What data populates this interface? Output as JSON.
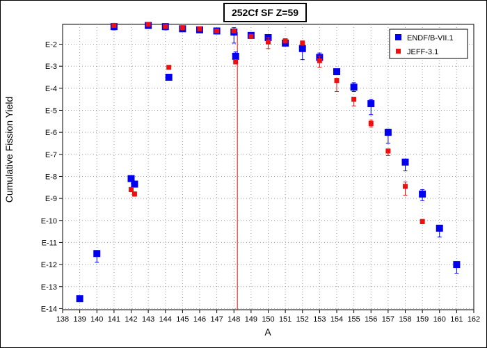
{
  "chart_data": {
    "type": "scatter",
    "title": "252Cf SF Z=59",
    "xlabel": "A",
    "ylabel": "Cumulative Fission Yield",
    "xlim": [
      138,
      162
    ],
    "x_ticks": [
      138,
      139,
      140,
      141,
      142,
      143,
      144,
      145,
      146,
      147,
      148,
      149,
      150,
      151,
      152,
      153,
      154,
      155,
      156,
      157,
      158,
      159,
      160,
      161,
      162
    ],
    "y_scale": "log",
    "ylim_exp": [
      -14.05,
      -1.1
    ],
    "y_ticks": [
      {
        "exp": -2,
        "label": "E-2"
      },
      {
        "exp": -3,
        "label": "E-3"
      },
      {
        "exp": -4,
        "label": "E-4"
      },
      {
        "exp": -5,
        "label": "E-5"
      },
      {
        "exp": -6,
        "label": "E-6"
      },
      {
        "exp": -7,
        "label": "E-7"
      },
      {
        "exp": -8,
        "label": "E-8"
      },
      {
        "exp": -9,
        "label": "E-9"
      },
      {
        "exp": -10,
        "label": "E-10"
      },
      {
        "exp": -11,
        "label": "E-11"
      },
      {
        "exp": -12,
        "label": "E-12"
      },
      {
        "exp": -13,
        "label": "E-13"
      },
      {
        "exp": -14,
        "label": "E-14"
      }
    ],
    "grid": true,
    "legend_position": "top-right",
    "vertical_line": {
      "x": 148.2,
      "color": "#e01010"
    },
    "series": [
      {
        "name": "ENDF/B-VII.1",
        "color": "#0000ee",
        "marker": "square-large",
        "points": [
          {
            "x": 139,
            "y_exp": -13.55,
            "err": [
              0.1,
              0.1
            ]
          },
          {
            "x": 140,
            "y_exp": -11.5,
            "err": [
              0.1,
              0.4
            ]
          },
          {
            "x": 141,
            "y_exp": -1.2,
            "err": [
              0.15,
              0.15
            ]
          },
          {
            "x": 142,
            "y_exp": -8.1,
            "err": [
              0.1,
              0.1
            ]
          },
          {
            "x": 142.2,
            "y_exp": -8.35,
            "err": [
              0.1,
              0.1
            ]
          },
          {
            "x": 143,
            "y_exp": -1.15,
            "err": [
              0.1,
              0.1
            ]
          },
          {
            "x": 144,
            "y_exp": -1.2,
            "err": [
              0.1,
              0.15
            ]
          },
          {
            "x": 144.2,
            "y_exp": -3.5,
            "err": [
              0.05,
              0.05
            ]
          },
          {
            "x": 145,
            "y_exp": -1.3,
            "err": [
              0.1,
              0.1
            ]
          },
          {
            "x": 146,
            "y_exp": -1.35,
            "err": [
              0.1,
              0.1
            ]
          },
          {
            "x": 147,
            "y_exp": -1.4,
            "err": [
              0.1,
              0.1
            ]
          },
          {
            "x": 148,
            "y_exp": -1.45,
            "err": [
              0.2,
              0.5
            ]
          },
          {
            "x": 148.1,
            "y_exp": -2.55,
            "err": [
              0.2,
              0.3
            ]
          },
          {
            "x": 149,
            "y_exp": -1.6,
            "err": [
              0.1,
              0.1
            ]
          },
          {
            "x": 150,
            "y_exp": -1.7,
            "err": [
              0.1,
              0.1
            ]
          },
          {
            "x": 151,
            "y_exp": -1.95,
            "err": [
              0.1,
              0.1
            ]
          },
          {
            "x": 152,
            "y_exp": -2.2,
            "err": [
              0.2,
              0.5
            ]
          },
          {
            "x": 153,
            "y_exp": -2.6,
            "err": [
              0.2,
              0.2
            ]
          },
          {
            "x": 154,
            "y_exp": -3.25,
            "err": [
              0.1,
              0.1
            ]
          },
          {
            "x": 155,
            "y_exp": -3.95,
            "err": [
              0.2,
              0.2
            ]
          },
          {
            "x": 156,
            "y_exp": -4.7,
            "err": [
              0.2,
              0.5
            ]
          },
          {
            "x": 157,
            "y_exp": -6.0,
            "err": [
              0.15,
              0.5
            ]
          },
          {
            "x": 158,
            "y_exp": -7.35,
            "err": [
              0.1,
              0.4
            ]
          },
          {
            "x": 159,
            "y_exp": -8.8,
            "err": [
              0.2,
              0.3
            ]
          },
          {
            "x": 160,
            "y_exp": -10.35,
            "err": [
              0.1,
              0.4
            ]
          },
          {
            "x": 161,
            "y_exp": -12.0,
            "err": [
              0.1,
              0.4
            ]
          }
        ]
      },
      {
        "name": "JEFF-3.1",
        "color": "#ee1010",
        "marker": "square-small",
        "points": [
          {
            "x": 141,
            "y_exp": -1.15,
            "err": [
              0.05,
              0.05
            ]
          },
          {
            "x": 142,
            "y_exp": -8.6,
            "err": [
              0.1,
              0.1
            ]
          },
          {
            "x": 142.2,
            "y_exp": -8.8,
            "err": [
              0.1,
              0.1
            ]
          },
          {
            "x": 143,
            "y_exp": -1.1,
            "err": [
              0.05,
              0.05
            ]
          },
          {
            "x": 144,
            "y_exp": -1.2,
            "err": [
              0.05,
              0.05
            ]
          },
          {
            "x": 144.2,
            "y_exp": -3.05,
            "err": [
              0.05,
              0.05
            ]
          },
          {
            "x": 145,
            "y_exp": -1.25,
            "err": [
              0.05,
              0.05
            ]
          },
          {
            "x": 146,
            "y_exp": -1.3,
            "err": [
              0.05,
              0.05
            ]
          },
          {
            "x": 147,
            "y_exp": -1.4,
            "err": [
              0.05,
              0.05
            ]
          },
          {
            "x": 148,
            "y_exp": -1.4,
            "err": [
              0.05,
              0.05
            ]
          },
          {
            "x": 148.1,
            "y_exp": -2.8,
            "err": [
              0.1,
              0.1
            ]
          },
          {
            "x": 149,
            "y_exp": -1.65,
            "err": [
              0.1,
              0.1
            ]
          },
          {
            "x": 150,
            "y_exp": -1.9,
            "err": [
              0.2,
              0.3
            ]
          },
          {
            "x": 151,
            "y_exp": -1.85,
            "err": [
              0.1,
              0.1
            ]
          },
          {
            "x": 152,
            "y_exp": -1.95,
            "err": [
              0.1,
              0.1
            ]
          },
          {
            "x": 153,
            "y_exp": -2.75,
            "err": [
              0.2,
              0.3
            ]
          },
          {
            "x": 154,
            "y_exp": -3.65,
            "err": [
              0.1,
              0.5
            ]
          },
          {
            "x": 155,
            "y_exp": -4.5,
            "err": [
              0.1,
              0.3
            ]
          },
          {
            "x": 156,
            "y_exp": -5.6,
            "err": [
              0.15,
              0.15
            ]
          },
          {
            "x": 157,
            "y_exp": -6.85,
            "err": [
              0.1,
              0.2
            ]
          },
          {
            "x": 158,
            "y_exp": -8.45,
            "err": [
              0.2,
              0.4
            ]
          },
          {
            "x": 159,
            "y_exp": -10.05,
            "err": [
              0.1,
              0.1
            ]
          }
        ]
      }
    ]
  }
}
